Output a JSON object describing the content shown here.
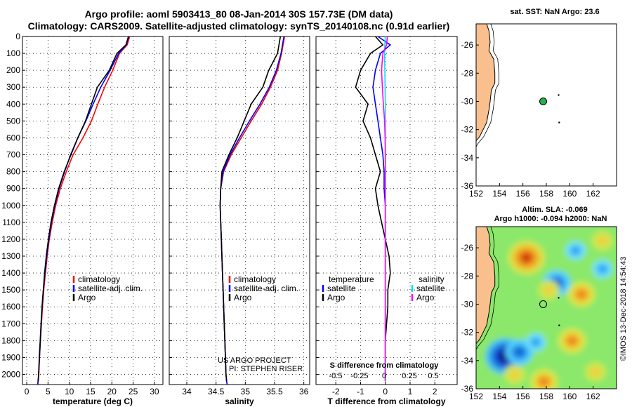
{
  "header": {
    "line1": "Argo profile: aoml 5903413_80 08-Jan-2014 30S 157.73E (DM data)",
    "line2": "Climatology: CARS2009. Satellite-adjusted climatology: synTS_20140108.nc (0.91d earlier)"
  },
  "credit": {
    "project": "US ARGO PROJECT",
    "pi": "PI: STEPHEN RISER",
    "stamp": "©IMOS 13-Dec-2018 14:54:43"
  },
  "colors": {
    "climatology": "#ff0000",
    "satellite": "#0000ff",
    "argo": "#000000",
    "s_satellite": "#00e5ee",
    "s_argo": "#ff00ff",
    "land": "#f9c08e",
    "marker": "#22b14c"
  },
  "chart_data": [
    {
      "id": "temperature",
      "type": "line",
      "xlabel": "temperature (deg C)",
      "xlim": [
        -1,
        32
      ],
      "xticks": [
        0,
        5,
        10,
        15,
        20,
        25,
        30
      ],
      "xticklabels": [
        "0",
        "5",
        "10",
        "15",
        "20",
        "25",
        "30"
      ],
      "ylim": [
        2060,
        0
      ],
      "yticks": [
        0,
        100,
        200,
        300,
        400,
        500,
        600,
        700,
        800,
        900,
        1000,
        1100,
        1200,
        1300,
        1400,
        1500,
        1600,
        1700,
        1800,
        1900,
        2000
      ],
      "yticklabels": [
        "0",
        "100",
        "200",
        "300",
        "400",
        "500",
        "600",
        "700",
        "800",
        "900",
        "1000",
        "1100",
        "1200",
        "1300",
        "1400",
        "1500",
        "1600",
        "1700",
        "1800",
        "1900",
        "2000"
      ],
      "legend": [
        "climatology",
        "satellite-adj. clim.",
        "Argo"
      ],
      "series": [
        {
          "name": "climatology",
          "color": "#ff0000",
          "x": [
            24.2,
            23.6,
            21.8,
            20.2,
            18.3,
            16.7,
            15.2,
            13.2,
            10.9,
            9.3,
            7.9,
            6.8,
            6.0,
            5.3,
            4.8,
            4.4,
            4.0,
            3.7,
            3.45,
            3.2,
            3.0,
            2.85,
            2.7,
            2.6
          ],
          "y": [
            0,
            50,
            100,
            200,
            300,
            400,
            500,
            600,
            700,
            800,
            900,
            1000,
            1100,
            1200,
            1300,
            1400,
            1500,
            1600,
            1700,
            1800,
            1900,
            2000,
            2040,
            2060
          ]
        },
        {
          "name": "satellite-adj. clim.",
          "color": "#0000ff",
          "x": [
            24.0,
            23.4,
            21.6,
            19.6,
            17.4,
            15.6,
            13.9,
            12.0,
            10.3,
            8.9,
            7.6,
            6.6,
            5.8,
            5.2,
            4.7,
            4.3,
            3.9,
            3.6,
            3.35,
            3.15,
            2.95,
            2.8,
            2.65,
            2.6
          ],
          "y": [
            0,
            50,
            100,
            200,
            300,
            400,
            500,
            600,
            700,
            800,
            900,
            1000,
            1100,
            1200,
            1300,
            1400,
            1500,
            1600,
            1700,
            1800,
            1900,
            2000,
            2040,
            2060
          ]
        },
        {
          "name": "Argo",
          "color": "#000000",
          "x": [
            23.9,
            23.3,
            21.2,
            19.4,
            16.6,
            15.2,
            13.8,
            12.0,
            10.4,
            8.8,
            7.5,
            6.5,
            5.7,
            5.1,
            4.6,
            4.2,
            3.9,
            3.6,
            3.4,
            3.2,
            3.0,
            2.8,
            2.7
          ],
          "y": [
            0,
            50,
            100,
            200,
            300,
            400,
            500,
            600,
            700,
            800,
            900,
            1000,
            1100,
            1200,
            1300,
            1400,
            1500,
            1600,
            1700,
            1800,
            1900,
            2000,
            2040
          ]
        }
      ]
    },
    {
      "id": "salinity",
      "type": "line",
      "xlabel": "salinity",
      "xlim": [
        33.7,
        36.1
      ],
      "xticks": [
        34,
        34.5,
        35,
        35.5,
        36
      ],
      "xticklabels": [
        "34",
        "34.5",
        "35",
        "35.5",
        "36"
      ],
      "ylim": [
        2060,
        0
      ],
      "legend": [
        "climatology",
        "satellite-adj. clim.",
        "Argo"
      ],
      "series": [
        {
          "name": "climatology",
          "color": "#ff0000",
          "x": [
            35.67,
            35.62,
            35.55,
            35.43,
            35.28,
            35.1,
            34.93,
            34.76,
            34.63,
            34.58,
            34.57,
            34.58,
            34.59,
            34.6,
            34.61,
            34.62,
            34.63,
            34.64,
            34.65,
            34.66,
            34.67,
            34.68,
            34.69
          ],
          "y": [
            0,
            100,
            200,
            300,
            400,
            500,
            600,
            700,
            800,
            900,
            1000,
            1100,
            1200,
            1300,
            1400,
            1500,
            1600,
            1700,
            1800,
            1900,
            2000,
            2040,
            2060
          ]
        },
        {
          "name": "satellite-adj. clim.",
          "color": "#0000ff",
          "x": [
            35.66,
            35.61,
            35.53,
            35.41,
            35.25,
            35.07,
            34.9,
            34.74,
            34.62,
            34.58,
            34.57,
            34.58,
            34.59,
            34.6,
            34.61,
            34.62,
            34.63,
            34.64,
            34.65,
            34.66,
            34.67,
            34.68,
            34.69
          ],
          "y": [
            0,
            100,
            200,
            300,
            400,
            500,
            600,
            700,
            800,
            900,
            1000,
            1100,
            1200,
            1300,
            1400,
            1500,
            1600,
            1700,
            1800,
            1900,
            2000,
            2040,
            2060
          ]
        },
        {
          "name": "Argo",
          "color": "#000000",
          "x": [
            35.6,
            35.55,
            35.4,
            35.3,
            35.1,
            34.98,
            34.86,
            34.72,
            34.6,
            34.58,
            34.57,
            34.58,
            34.59,
            34.6,
            34.61,
            34.62,
            34.63,
            34.64,
            34.65,
            34.66,
            34.67,
            34.68
          ],
          "y": [
            0,
            100,
            200,
            300,
            400,
            500,
            600,
            700,
            800,
            900,
            1000,
            1100,
            1200,
            1300,
            1400,
            1500,
            1600,
            1700,
            1800,
            1900,
            2000,
            2040
          ]
        }
      ]
    },
    {
      "id": "differences",
      "type": "line",
      "xlabel": "T difference from climatology",
      "xlim": [
        -2.8,
        2.9
      ],
      "xticks": [
        -2,
        -1,
        0,
        1,
        2
      ],
      "xticklabels": [
        "-2",
        "-1",
        "0",
        "1",
        "2"
      ],
      "s_axis_label": "S difference from climatology",
      "s_ticklabels": [
        "-0.5",
        "-0.25",
        "0",
        "0.25",
        "0.5"
      ],
      "ylim": [
        2060,
        0
      ],
      "legend_temperature": {
        "heading": "temperature",
        "entries": [
          "satellite",
          "Argo"
        ]
      },
      "legend_salinity": {
        "heading": "salinity",
        "entries": [
          "satellite",
          "Argo"
        ]
      },
      "series": [
        {
          "name": "T satellite",
          "color": "#0000ff",
          "x": [
            -0.3,
            0.2,
            -0.2,
            -0.4,
            -0.5,
            -0.4,
            -0.3,
            -0.2,
            -0.1,
            -0.05,
            -0.05,
            0,
            0,
            0,
            0,
            0,
            0,
            0,
            0,
            0,
            0,
            0
          ],
          "y": [
            0,
            50,
            100,
            200,
            300,
            400,
            500,
            600,
            700,
            800,
            900,
            1000,
            1100,
            1200,
            1300,
            1400,
            1500,
            1600,
            1700,
            1800,
            1900,
            2040
          ]
        },
        {
          "name": "T Argo",
          "color": "#000000",
          "x": [
            -0.4,
            -0.1,
            -0.6,
            -1.0,
            -1.2,
            -0.7,
            -0.9,
            -0.6,
            -0.4,
            -0.2,
            -0.4,
            -0.3,
            -0.15,
            0,
            0.15,
            0.2,
            0.1,
            0.1,
            0.05,
            0,
            0
          ],
          "y": [
            0,
            50,
            100,
            200,
            300,
            400,
            500,
            600,
            700,
            800,
            900,
            1000,
            1100,
            1200,
            1300,
            1400,
            1500,
            1600,
            1700,
            1800,
            2040
          ]
        },
        {
          "name": "S satellite",
          "color": "#00e5ee",
          "x": [
            0,
            -0.02,
            -0.03,
            -0.02,
            -0.01,
            0,
            0,
            0,
            0,
            0,
            0,
            0,
            0,
            0,
            0,
            0,
            0
          ],
          "y": [
            0,
            50,
            100,
            200,
            300,
            400,
            500,
            700,
            900,
            1100,
            1300,
            1500,
            1700,
            1800,
            1900,
            2000,
            2040
          ]
        },
        {
          "name": "S Argo",
          "color": "#ff00ff",
          "x": [
            0.08,
            0.05,
            -0.1,
            -0.15,
            -0.12,
            -0.08,
            -0.03,
            -0.01,
            0,
            0,
            0,
            0,
            0,
            0,
            0,
            0
          ],
          "y": [
            0,
            50,
            100,
            200,
            300,
            400,
            500,
            600,
            700,
            900,
            1100,
            1300,
            1500,
            1700,
            1900,
            2040
          ]
        }
      ]
    },
    {
      "id": "sst_map",
      "type": "scatter",
      "title": "sat. SST: NaN Argo: 23.6",
      "xlim": [
        152,
        164
      ],
      "ylim": [
        -36,
        -24.5
      ],
      "xticks": [
        152,
        154,
        156,
        158,
        160,
        162
      ],
      "xticklabels": [
        "152",
        "154",
        "156",
        "158",
        "160",
        "162"
      ],
      "yticks": [
        -26,
        -28,
        -30,
        -32,
        -34,
        -36
      ],
      "yticklabels": [
        "-26",
        "-28",
        "-30",
        "-32",
        "-34",
        "-36"
      ],
      "points": [
        {
          "lon": 157.73,
          "lat": -30.0,
          "label": "Argo profile"
        }
      ]
    },
    {
      "id": "sla_map",
      "type": "heatmap",
      "title1": "Altim. SLA: -0.069",
      "title2": "Argo h1000: -0.094 h2000: NaN",
      "xlim": [
        152,
        164
      ],
      "ylim": [
        -36,
        -24.5
      ],
      "xticks": [
        152,
        154,
        156,
        158,
        160,
        162
      ],
      "xticklabels": [
        "152",
        "154",
        "156",
        "158",
        "160",
        "162"
      ],
      "yticks": [
        -26,
        -28,
        -30,
        -32,
        -34,
        -36
      ],
      "yticklabels": [
        "-26",
        "-28",
        "-30",
        "-32",
        "-34",
        "-36"
      ],
      "points": [
        {
          "lon": 157.73,
          "lat": -30.0,
          "label": "Argo profile"
        }
      ],
      "blobs": [
        {
          "lon": 154.5,
          "lat": -33.7,
          "v": -1.0
        },
        {
          "lon": 155.7,
          "lat": -33.4,
          "v": -0.6
        },
        {
          "lon": 157.1,
          "lat": -32.7,
          "v": -0.4
        },
        {
          "lon": 158.9,
          "lat": -28.5,
          "v": -0.6
        },
        {
          "lon": 160.5,
          "lat": -26.2,
          "v": -0.4
        },
        {
          "lon": 162.8,
          "lat": -27.5,
          "v": -0.3
        },
        {
          "lon": 156.3,
          "lat": -26.7,
          "v": 0.9
        },
        {
          "lon": 158.2,
          "lat": -29.0,
          "v": 0.4
        },
        {
          "lon": 161.0,
          "lat": -29.3,
          "v": 0.6
        },
        {
          "lon": 160.2,
          "lat": -32.6,
          "v": 0.5
        },
        {
          "lon": 157.8,
          "lat": -35.5,
          "v": 0.6
        },
        {
          "lon": 162.2,
          "lat": -34.8,
          "v": 0.3
        },
        {
          "lon": 155.3,
          "lat": -35.0,
          "v": 0.3
        },
        {
          "lon": 162.8,
          "lat": -25.5,
          "v": 0.2
        }
      ]
    }
  ]
}
